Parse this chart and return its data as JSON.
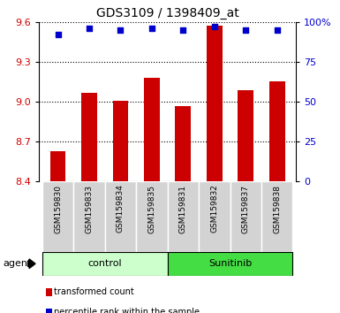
{
  "title": "GDS3109 / 1398409_at",
  "samples": [
    "GSM159830",
    "GSM159833",
    "GSM159834",
    "GSM159835",
    "GSM159831",
    "GSM159832",
    "GSM159837",
    "GSM159838"
  ],
  "bar_values": [
    8.63,
    9.07,
    9.01,
    9.18,
    8.97,
    9.57,
    9.09,
    9.15
  ],
  "percentile_values": [
    92,
    96,
    95,
    96,
    95,
    97,
    95,
    95
  ],
  "ylim_left": [
    8.4,
    9.6
  ],
  "ylim_right": [
    0,
    100
  ],
  "yticks_left": [
    8.4,
    8.7,
    9.0,
    9.3,
    9.6
  ],
  "yticks_right": [
    0,
    25,
    50,
    75,
    100
  ],
  "ytick_labels_right": [
    "0",
    "25",
    "50",
    "75",
    "100%"
  ],
  "bar_color": "#cc0000",
  "dot_color": "#0000cc",
  "control_group_n": 4,
  "sunitinib_group_n": 4,
  "control_label": "control",
  "sunitinib_label": "Sunitinib",
  "agent_label": "agent",
  "legend1": "transformed count",
  "legend2": "percentile rank within the sample",
  "control_color": "#ccffcc",
  "sunitinib_color": "#44dd44",
  "ylabel_left_color": "#cc0000",
  "ylabel_right_color": "#0000cc",
  "bar_bottom": 8.4,
  "bar_width": 0.5
}
